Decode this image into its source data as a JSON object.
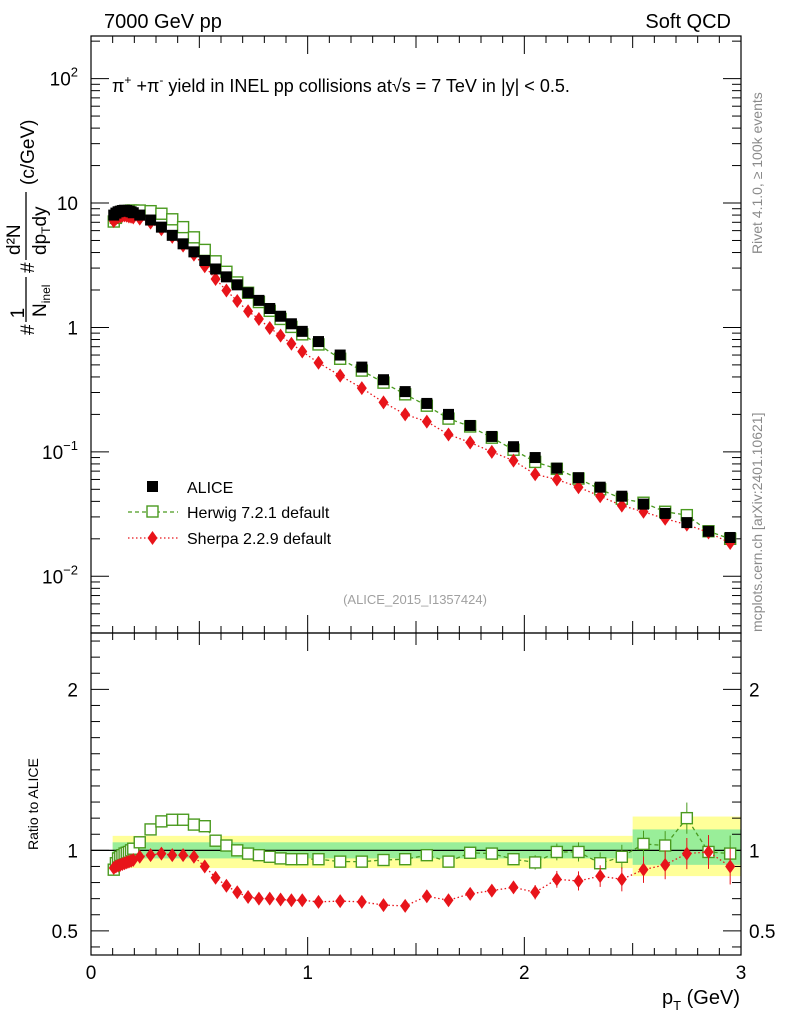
{
  "header": {
    "left": "7000 GeV pp",
    "right": "Soft QCD"
  },
  "side": {
    "rivet": "Rivet 4.1.0, ≥ 100k events",
    "mcplots": "mcplots.cern.ch [arXiv:2401.10621]"
  },
  "chart_data": [
    {
      "type": "scatter",
      "title": "π⁺ +π⁻ yield in INEL pp collisions at √s = 7 TeV in |y| < 0.5.",
      "title_parts": {
        "pre": "π",
        "sup1": "+",
        "mid": " +π",
        "sup2": "-",
        "post": " yield in INEL pp collisions at",
        "sqrt": "√s",
        "tail": " =  7 TeV in |y| < 0.5."
      },
      "ylabel": "#1/N_inel # d²N/dp_T dy (c/GeV)",
      "ylabel_parts": {
        "hash": "#",
        "one": "1",
        "ninel": "N",
        "inel": "inel",
        "hash2": "#",
        "d2n": "d²N",
        "dpt": "dp",
        "t": "T",
        "dy": "dy",
        "unit": "(c/GeV)"
      },
      "xlabel": "p_T (GeV)",
      "yscale": "log",
      "ylim": [
        0.0035,
        220
      ],
      "xlim": [
        0,
        3
      ],
      "yticks": [
        {
          "v": 0.01,
          "base": "10",
          "exp": "−2"
        },
        {
          "v": 0.1,
          "base": "10",
          "exp": "−1"
        },
        {
          "v": 1,
          "base": "1",
          "exp": ""
        },
        {
          "v": 10,
          "base": "10",
          "exp": ""
        },
        {
          "v": 100,
          "base": "10",
          "exp": "2"
        }
      ],
      "watermark": "(ALICE_2015_I1357424)",
      "legend": [
        "ALICE",
        "Herwig 7.2.1 default",
        "Sherpa 2.2.9 default"
      ],
      "series": [
        {
          "name": "ALICE",
          "x": [
            0.105,
            0.115,
            0.125,
            0.135,
            0.145,
            0.155,
            0.165,
            0.175,
            0.185,
            0.195,
            0.225,
            0.275,
            0.325,
            0.375,
            0.425,
            0.475,
            0.525,
            0.575,
            0.625,
            0.675,
            0.725,
            0.775,
            0.825,
            0.875,
            0.925,
            0.975,
            1.05,
            1.15,
            1.25,
            1.35,
            1.45,
            1.55,
            1.65,
            1.75,
            1.85,
            1.95,
            2.05,
            2.15,
            2.25,
            2.35,
            2.45,
            2.55,
            2.65,
            2.75,
            2.85,
            2.95
          ],
          "values": [
            8.0,
            8.3,
            8.5,
            8.6,
            8.7,
            8.75,
            8.7,
            8.6,
            8.5,
            8.35,
            8.0,
            7.3,
            6.4,
            5.5,
            4.7,
            4.05,
            3.45,
            2.95,
            2.55,
            2.2,
            1.9,
            1.65,
            1.42,
            1.23,
            1.07,
            0.93,
            0.77,
            0.6,
            0.48,
            0.38,
            0.305,
            0.245,
            0.2,
            0.163,
            0.133,
            0.11,
            0.09,
            0.074,
            0.062,
            0.052,
            0.044,
            0.038,
            0.032,
            0.027,
            0.023,
            0.0205
          ]
        },
        {
          "name": "Herwig 7.2.1 default",
          "x": [
            0.105,
            0.115,
            0.125,
            0.135,
            0.145,
            0.155,
            0.165,
            0.175,
            0.185,
            0.195,
            0.225,
            0.275,
            0.325,
            0.375,
            0.425,
            0.475,
            0.525,
            0.575,
            0.625,
            0.675,
            0.725,
            0.775,
            0.825,
            0.875,
            0.925,
            0.975,
            1.05,
            1.15,
            1.25,
            1.35,
            1.45,
            1.55,
            1.65,
            1.75,
            1.85,
            1.95,
            2.05,
            2.15,
            2.25,
            2.35,
            2.45,
            2.55,
            2.65,
            2.75,
            2.85,
            2.95
          ],
          "values": [
            7.1,
            7.6,
            8.1,
            8.3,
            8.5,
            8.6,
            8.6,
            8.65,
            8.7,
            8.7,
            8.7,
            8.6,
            8.2,
            7.4,
            6.4,
            5.3,
            4.2,
            3.4,
            2.8,
            2.3,
            1.9,
            1.6,
            1.36,
            1.17,
            1.01,
            0.88,
            0.73,
            0.56,
            0.45,
            0.36,
            0.29,
            0.235,
            0.185,
            0.16,
            0.13,
            0.104,
            0.083,
            0.073,
            0.061,
            0.05,
            0.042,
            0.039,
            0.033,
            0.031,
            0.023,
            0.02
          ]
        },
        {
          "name": "Sherpa 2.2.9 default",
          "x": [
            0.105,
            0.115,
            0.125,
            0.135,
            0.145,
            0.155,
            0.165,
            0.175,
            0.185,
            0.195,
            0.225,
            0.275,
            0.325,
            0.375,
            0.425,
            0.475,
            0.525,
            0.575,
            0.625,
            0.675,
            0.725,
            0.775,
            0.825,
            0.875,
            0.925,
            0.975,
            1.05,
            1.15,
            1.25,
            1.35,
            1.45,
            1.55,
            1.65,
            1.75,
            1.85,
            1.95,
            2.05,
            2.15,
            2.25,
            2.35,
            2.45,
            2.55,
            2.65,
            2.75,
            2.85,
            2.95
          ],
          "values": [
            7.15,
            7.5,
            7.7,
            7.8,
            7.9,
            7.95,
            7.9,
            7.8,
            7.75,
            7.65,
            7.5,
            6.95,
            6.15,
            5.35,
            4.55,
            3.85,
            3.1,
            2.45,
            1.98,
            1.63,
            1.35,
            1.17,
            0.99,
            0.86,
            0.74,
            0.64,
            0.52,
            0.41,
            0.325,
            0.25,
            0.2,
            0.175,
            0.138,
            0.119,
            0.1,
            0.085,
            0.066,
            0.06,
            0.052,
            0.044,
            0.037,
            0.033,
            0.029,
            0.026,
            0.0225,
            0.0185
          ]
        }
      ]
    },
    {
      "type": "scatter",
      "ylabel": "Ratio to ALICE",
      "xlabel": "p_T (GeV)",
      "xlim": [
        0,
        3
      ],
      "ylim": [
        0.35,
        2.35
      ],
      "yticks": [
        0.5,
        1,
        2
      ],
      "yticklabels": [
        "0.5",
        "1",
        "2"
      ],
      "xticks": [
        0,
        1,
        2,
        3
      ],
      "xticklabels": [
        "0",
        "1",
        "2",
        "3"
      ],
      "bands": [
        {
          "x0": 0.1,
          "x1": 2.5,
          "green_lo": 0.95,
          "green_hi": 1.05,
          "yellow_lo": 0.89,
          "yellow_hi": 1.09
        },
        {
          "x0": 2.5,
          "x1": 3.0,
          "green_lo": 0.91,
          "green_hi": 1.13,
          "yellow_lo": 0.84,
          "yellow_hi": 1.21
        }
      ],
      "series": [
        {
          "name": "Herwig 7.2.1 default",
          "x": [
            0.105,
            0.115,
            0.125,
            0.135,
            0.145,
            0.155,
            0.165,
            0.175,
            0.185,
            0.195,
            0.225,
            0.275,
            0.325,
            0.375,
            0.425,
            0.475,
            0.525,
            0.575,
            0.625,
            0.675,
            0.725,
            0.775,
            0.825,
            0.875,
            0.925,
            0.975,
            1.05,
            1.15,
            1.25,
            1.35,
            1.45,
            1.55,
            1.65,
            1.75,
            1.85,
            1.95,
            2.05,
            2.15,
            2.25,
            2.35,
            2.45,
            2.55,
            2.65,
            2.75,
            2.85,
            2.95
          ],
          "values": [
            0.88,
            0.92,
            0.95,
            0.96,
            0.97,
            0.98,
            0.985,
            0.99,
            1.0,
            1.01,
            1.05,
            1.13,
            1.18,
            1.19,
            1.19,
            1.16,
            1.15,
            1.06,
            1.03,
            1.0,
            0.98,
            0.97,
            0.96,
            0.95,
            0.945,
            0.945,
            0.945,
            0.93,
            0.93,
            0.94,
            0.945,
            0.97,
            0.93,
            0.985,
            0.98,
            0.945,
            0.925,
            0.99,
            0.99,
            0.92,
            0.96,
            1.04,
            1.03,
            1.2,
            0.99,
            0.98
          ]
        },
        {
          "name": "Sherpa 2.2.9 default",
          "x": [
            0.105,
            0.115,
            0.125,
            0.135,
            0.145,
            0.155,
            0.165,
            0.175,
            0.185,
            0.195,
            0.225,
            0.275,
            0.325,
            0.375,
            0.425,
            0.475,
            0.525,
            0.575,
            0.625,
            0.675,
            0.725,
            0.775,
            0.825,
            0.875,
            0.925,
            0.975,
            1.05,
            1.15,
            1.25,
            1.35,
            1.45,
            1.55,
            1.65,
            1.75,
            1.85,
            1.95,
            2.05,
            2.15,
            2.25,
            2.35,
            2.45,
            2.55,
            2.65,
            2.75,
            2.85,
            2.95
          ],
          "values": [
            0.89,
            0.9,
            0.905,
            0.91,
            0.915,
            0.92,
            0.925,
            0.93,
            0.935,
            0.94,
            0.96,
            0.97,
            0.98,
            0.97,
            0.97,
            0.96,
            0.9,
            0.83,
            0.78,
            0.74,
            0.71,
            0.7,
            0.7,
            0.695,
            0.69,
            0.69,
            0.68,
            0.685,
            0.68,
            0.66,
            0.655,
            0.715,
            0.69,
            0.73,
            0.75,
            0.77,
            0.74,
            0.82,
            0.81,
            0.84,
            0.82,
            0.88,
            0.91,
            0.98,
            0.99,
            0.9
          ]
        }
      ]
    }
  ]
}
